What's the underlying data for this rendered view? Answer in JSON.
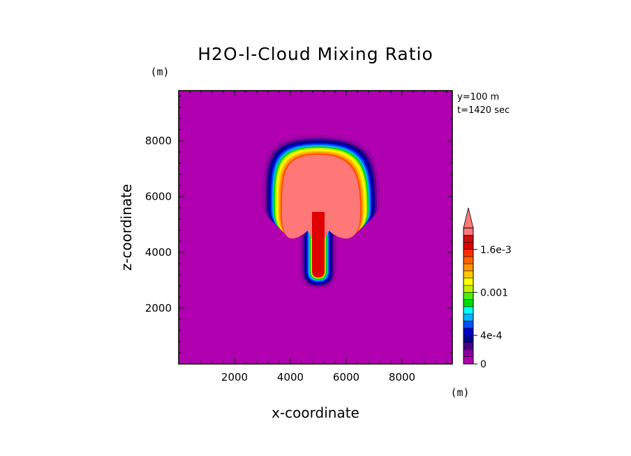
{
  "chart_data": {
    "type": "heatmap",
    "title": "H2O-l-Cloud Mixing Ratio",
    "xlabel": "x-coordinate",
    "ylabel": "z-coordinate",
    "x_unit": "(m)",
    "y_unit": "(m)",
    "annotations": [
      "y=100 m",
      "t=1420 sec"
    ],
    "xlim": [
      0,
      9800
    ],
    "ylim": [
      0,
      9800
    ],
    "xticks": [
      2000,
      4000,
      6000,
      8000
    ],
    "yticks": [
      2000,
      4000,
      6000,
      8000
    ],
    "xtick_labels": [
      "2000",
      "4000",
      "6000",
      "8000"
    ],
    "ytick_labels": [
      "2000",
      "4000",
      "6000",
      "8000"
    ],
    "colorbar": {
      "levels": [
        0,
        0.0001,
        0.0002,
        0.0003,
        0.0004,
        0.0005,
        0.0006,
        0.0007,
        0.0008,
        0.0009,
        0.001,
        0.0011,
        0.0012,
        0.0013,
        0.0014,
        0.0015,
        0.0016,
        0.0017,
        0.0018
      ],
      "colors": [
        "#b000b0",
        "#8a00a0",
        "#4a0080",
        "#000090",
        "#0000c8",
        "#0050ff",
        "#00b4ff",
        "#00ffff",
        "#00dc00",
        "#4cf000",
        "#c0f000",
        "#ffff00",
        "#ffc800",
        "#ff9600",
        "#ff6400",
        "#ff3000",
        "#e00000",
        "#c81010",
        "#ff7878"
      ],
      "tick_labels": [
        {
          "value": 0,
          "label": "0"
        },
        {
          "value": 0.0004,
          "label": "4e-4"
        },
        {
          "value": 0.001,
          "label": "0.001"
        },
        {
          "value": 0.0016,
          "label": "1.6e-3"
        }
      ],
      "extend": "max"
    },
    "background_color": "#b000b0",
    "cloud": {
      "description_values_note": "",
      "max_color": "#ff7878",
      "anvil_top_z": 8200,
      "anvil_x_range": [
        3000,
        7200
      ],
      "stem_x_center": 5000,
      "stem_base_z": 2700
    }
  }
}
